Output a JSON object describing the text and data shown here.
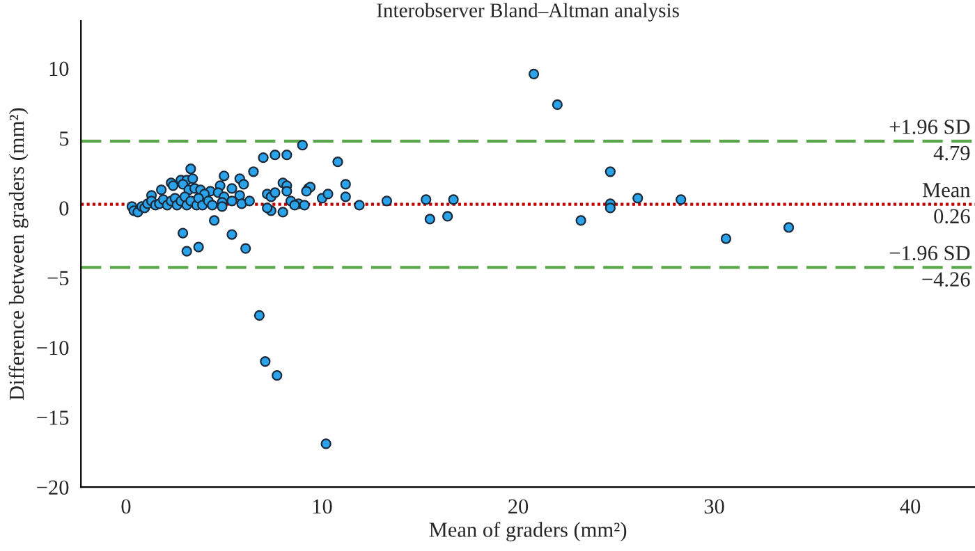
{
  "chart_data": {
    "type": "scatter",
    "title": "Interobserver Bland–Altman analysis",
    "xlabel": "Mean of graders (mm²)",
    "ylabel": "Difference between graders (mm²)",
    "xlim": [
      -2.3,
      43.3
    ],
    "ylim": [
      -20,
      13.4
    ],
    "xticks": [
      0,
      10,
      20,
      30,
      40
    ],
    "yticks": [
      -20,
      -15,
      -10,
      -5,
      0,
      5,
      10
    ],
    "grid": false,
    "marker": "circle",
    "series": [
      {
        "color": "#2ba3ea",
        "x": [
          20.8,
          22.0,
          24.7,
          24.7,
          24.7,
          23.2,
          26.1,
          28.3,
          30.6,
          33.8,
          10.8,
          11.2,
          11.2,
          11.9,
          13.3,
          15.3,
          15.5,
          16.4,
          16.7,
          9.0,
          7.0,
          7.6,
          8.2,
          6.5,
          3.3,
          2.3,
          2.8,
          3.1,
          3.4,
          5.0,
          5.8,
          6.0,
          2.4,
          1.8,
          1.3,
          2.9,
          3.2,
          3.5,
          3.8,
          4.3,
          4.8,
          5.4,
          4.7,
          4.0,
          5.8,
          5.0,
          8.0,
          8.2,
          8.2,
          7.2,
          7.4,
          7.6,
          9.3,
          9.4,
          9.2,
          10.0,
          10.3,
          8.4,
          8.8,
          9.1,
          7.4,
          8.0,
          4.5,
          2.9,
          3.1,
          3.7,
          5.4,
          6.1,
          0.3,
          0.4,
          0.6,
          0.8,
          0.95,
          1.1,
          1.3,
          1.5,
          1.7,
          1.9,
          2.1,
          2.3,
          2.5,
          2.6,
          2.8,
          3.0,
          3.1,
          3.3,
          3.6,
          3.7,
          3.9,
          4.2,
          4.4,
          4.9,
          4.9,
          5.4,
          5.9,
          6.3,
          7.2,
          8.6,
          6.8,
          7.1,
          7.7,
          10.2
        ],
        "values": [
          9.6,
          7.4,
          2.6,
          0.3,
          0.0,
          -0.9,
          0.7,
          0.6,
          -2.2,
          -1.4,
          3.3,
          1.7,
          0.8,
          0.2,
          0.5,
          0.6,
          -0.8,
          -0.6,
          0.6,
          4.5,
          3.6,
          3.8,
          3.8,
          2.6,
          2.8,
          1.8,
          2.0,
          2.0,
          2.1,
          2.3,
          2.1,
          1.7,
          1.6,
          1.3,
          0.9,
          1.7,
          1.3,
          1.4,
          1.3,
          1.2,
          1.6,
          1.4,
          1.1,
          1.0,
          0.9,
          0.8,
          1.8,
          1.6,
          1.2,
          1.0,
          0.8,
          1.1,
          1.4,
          1.5,
          1.2,
          0.7,
          1.0,
          0.5,
          0.3,
          0.2,
          -0.2,
          -0.3,
          -0.9,
          -1.8,
          -3.1,
          -2.8,
          -1.9,
          -2.9,
          0.1,
          -0.2,
          -0.3,
          0.1,
          0.0,
          0.3,
          0.5,
          0.2,
          0.3,
          0.6,
          0.2,
          0.5,
          0.7,
          0.2,
          0.5,
          0.8,
          0.2,
          0.5,
          0.2,
          0.7,
          0.2,
          0.5,
          0.2,
          0.4,
          0.1,
          0.5,
          0.3,
          0.5,
          0.0,
          0.2,
          -7.7,
          -11.0,
          -12.0,
          -16.9
        ]
      }
    ],
    "ref_lines": [
      {
        "axis": "y",
        "value": 4.79,
        "label": "+1.96 SD\n4.79",
        "color": "#5aa64a",
        "line_style": "dashed"
      },
      {
        "axis": "y",
        "value": 0.26,
        "label": "Mean\n0.26",
        "color": "#c00000",
        "line_style": "dotted"
      },
      {
        "axis": "y",
        "value": -4.26,
        "label": "−1.96 SD\n−4.26",
        "color": "#5aa64a",
        "line_style": "dashed"
      }
    ]
  }
}
